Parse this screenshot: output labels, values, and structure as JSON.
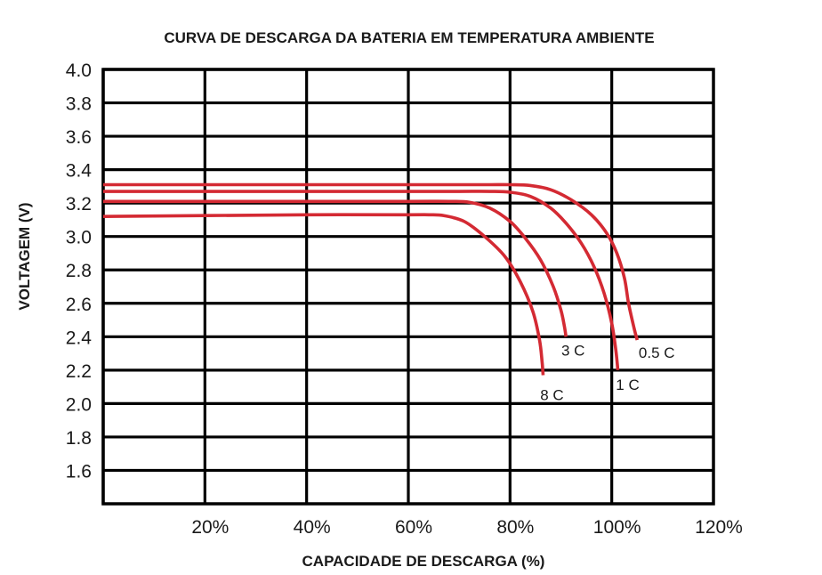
{
  "chart_data": {
    "type": "line",
    "title": "CURVA DE DESCARGA DA BATERIA EM TEMPERATURA AMBIENTE",
    "xlabel": "CAPACIDADE DE DESCARGA (%)",
    "ylabel": "VOLTAGEM (V)",
    "xlim": [
      0,
      120
    ],
    "ylim": [
      1.4,
      4.0
    ],
    "x_ticks": [
      "20%",
      "40%",
      "60%",
      "80%",
      "100%",
      "120%"
    ],
    "x_tick_values": [
      20,
      40,
      60,
      80,
      100,
      120
    ],
    "y_ticks": [
      "4.0",
      "3.8",
      "3.6",
      "3.4",
      "3.2",
      "3.0",
      "2.8",
      "2.6",
      "2.4",
      "2.2",
      "2.0",
      "1.8",
      "1.6"
    ],
    "y_tick_values": [
      4.0,
      3.8,
      3.6,
      3.4,
      3.2,
      3.0,
      2.8,
      2.6,
      2.4,
      2.2,
      2.0,
      1.8,
      1.6
    ],
    "grid": true,
    "line_color": "#d42a33",
    "series": [
      {
        "name": "0.5 C",
        "x": [
          0,
          20,
          40,
          60,
          70,
          76,
          80,
          84,
          88,
          92,
          96,
          99,
          101,
          102.5,
          103.3,
          104.4,
          105
        ],
        "y": [
          3.31,
          3.31,
          3.31,
          3.31,
          3.31,
          3.31,
          3.31,
          3.305,
          3.28,
          3.22,
          3.13,
          3.02,
          2.9,
          2.75,
          2.6,
          2.45,
          2.38
        ]
      },
      {
        "name": "1 C",
        "x": [
          0,
          20,
          40,
          60,
          70,
          76,
          80,
          84,
          88,
          91,
          94,
          96.5,
          98.5,
          100,
          100.8,
          101.2
        ],
        "y": [
          3.27,
          3.27,
          3.27,
          3.27,
          3.27,
          3.27,
          3.265,
          3.24,
          3.17,
          3.08,
          2.96,
          2.82,
          2.66,
          2.48,
          2.32,
          2.2
        ]
      },
      {
        "name": "3 C",
        "x": [
          0,
          20,
          40,
          60,
          68,
          72,
          76,
          80,
          83,
          86,
          88.5,
          90,
          90.7,
          91
        ],
        "y": [
          3.21,
          3.21,
          3.21,
          3.21,
          3.21,
          3.205,
          3.17,
          3.09,
          2.99,
          2.86,
          2.7,
          2.56,
          2.46,
          2.4
        ]
      },
      {
        "name": "8 C",
        "x": [
          0,
          20,
          40,
          60,
          64,
          67,
          71,
          75,
          79,
          82,
          84.5,
          85.8,
          86.3,
          86.5
        ],
        "y": [
          3.12,
          3.125,
          3.13,
          3.13,
          3.13,
          3.125,
          3.09,
          3.0,
          2.88,
          2.73,
          2.55,
          2.38,
          2.25,
          2.17
        ]
      }
    ]
  }
}
